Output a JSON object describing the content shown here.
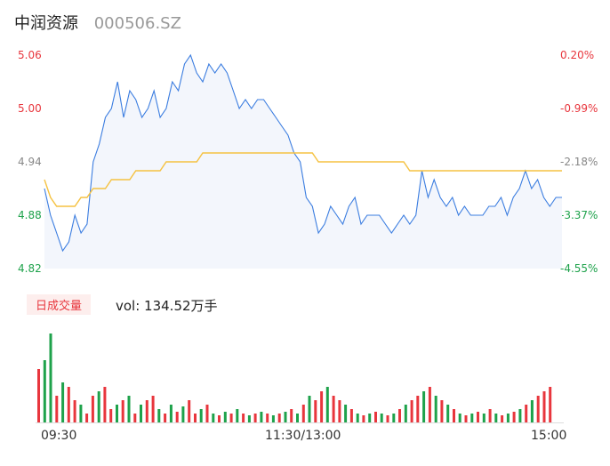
{
  "header": {
    "name": "中润资源",
    "code": "000506.SZ"
  },
  "volume_panel": {
    "badge": "日成交量",
    "label": "vol: 134.52万手"
  },
  "chart_data": [
    {
      "type": "line",
      "y_labels_price": [
        "5.06",
        "5.00",
        "4.94",
        "4.88",
        "4.82"
      ],
      "y_labels_pct": [
        "0.20%",
        "-0.99%",
        "-2.18%",
        "-3.37%",
        "-4.55%"
      ],
      "ylim": [
        4.82,
        5.06
      ],
      "x_labels": [
        "09:30",
        "11:30/13:00",
        "15:00"
      ],
      "series": [
        {
          "values": [
            4.91,
            4.88,
            4.86,
            4.84,
            4.85,
            4.88,
            4.86,
            4.87,
            4.94,
            4.96,
            4.99,
            5.0,
            5.03,
            4.99,
            5.02,
            5.01,
            4.99,
            5.0,
            5.02,
            4.99,
            5.0,
            5.03,
            5.02,
            5.05,
            5.06,
            5.04,
            5.03,
            5.05,
            5.04,
            5.05,
            5.04,
            5.02,
            5.0,
            5.01,
            5.0,
            5.01,
            5.01,
            5.0,
            4.99,
            4.98,
            4.97,
            4.95,
            4.94,
            4.9,
            4.89,
            4.86,
            4.87,
            4.89,
            4.88,
            4.87,
            4.89,
            4.9,
            4.87,
            4.88,
            4.88,
            4.88,
            4.87,
            4.86,
            4.87,
            4.88,
            4.87,
            4.88,
            4.93,
            4.9,
            4.92,
            4.9,
            4.89,
            4.9,
            4.88,
            4.89,
            4.88,
            4.88,
            4.88,
            4.89,
            4.89,
            4.9,
            4.88,
            4.9,
            4.91,
            4.93,
            4.91,
            4.92,
            4.9,
            4.89,
            4.9,
            4.9
          ],
          "color": "#3b7de0"
        },
        {
          "values": [
            4.92,
            4.9,
            4.89,
            4.89,
            4.89,
            4.89,
            4.9,
            4.9,
            4.91,
            4.91,
            4.91,
            4.92,
            4.92,
            4.92,
            4.92,
            4.93,
            4.93,
            4.93,
            4.93,
            4.93,
            4.94,
            4.94,
            4.94,
            4.94,
            4.94,
            4.94,
            4.95,
            4.95,
            4.95,
            4.95,
            4.95,
            4.95,
            4.95,
            4.95,
            4.95,
            4.95,
            4.95,
            4.95,
            4.95,
            4.95,
            4.95,
            4.95,
            4.95,
            4.95,
            4.95,
            4.94,
            4.94,
            4.94,
            4.94,
            4.94,
            4.94,
            4.94,
            4.94,
            4.94,
            4.94,
            4.94,
            4.94,
            4.94,
            4.94,
            4.94,
            4.93,
            4.93,
            4.93,
            4.93,
            4.93,
            4.93,
            4.93,
            4.93,
            4.93,
            4.93,
            4.93,
            4.93,
            4.93,
            4.93,
            4.93,
            4.93,
            4.93,
            4.93,
            4.93,
            4.93,
            4.93,
            4.93,
            4.93,
            4.93,
            4.93,
            4.93
          ],
          "color": "#f5c242"
        }
      ]
    },
    {
      "type": "bar",
      "values": [
        60,
        70,
        100,
        30,
        45,
        40,
        25,
        20,
        10,
        30,
        35,
        40,
        15,
        20,
        25,
        30,
        10,
        20,
        25,
        30,
        15,
        10,
        20,
        12,
        18,
        25,
        10,
        15,
        20,
        10,
        8,
        12,
        10,
        15,
        10,
        8,
        10,
        12,
        10,
        8,
        10,
        12,
        15,
        10,
        20,
        30,
        25,
        35,
        40,
        30,
        25,
        20,
        15,
        10,
        8,
        10,
        12,
        10,
        8,
        10,
        15,
        20,
        25,
        30,
        35,
        40,
        30,
        25,
        20,
        15,
        10,
        8,
        10,
        12,
        10,
        15,
        10,
        8,
        10,
        12,
        15,
        20,
        25,
        30,
        35,
        40
      ],
      "colors": [
        "red",
        "green",
        "green",
        "red",
        "green",
        "red",
        "red",
        "green",
        "red",
        "red",
        "green",
        "red",
        "red",
        "green",
        "red",
        "green",
        "red",
        "green",
        "red",
        "red",
        "green",
        "red",
        "green",
        "red",
        "green",
        "red",
        "red",
        "green",
        "red",
        "green",
        "red",
        "green",
        "red",
        "green",
        "red",
        "green",
        "red",
        "green",
        "red",
        "green",
        "red",
        "green",
        "red",
        "green",
        "red",
        "green",
        "red",
        "red",
        "green",
        "red",
        "red",
        "green",
        "red",
        "green",
        "red",
        "green",
        "red",
        "green",
        "red",
        "green",
        "red",
        "green",
        "red",
        "red",
        "green",
        "red",
        "green",
        "red",
        "green",
        "red",
        "green",
        "red",
        "green",
        "red",
        "green",
        "red",
        "green",
        "red",
        "green",
        "red",
        "green",
        "red",
        "green",
        "red",
        "red",
        "red"
      ]
    }
  ]
}
